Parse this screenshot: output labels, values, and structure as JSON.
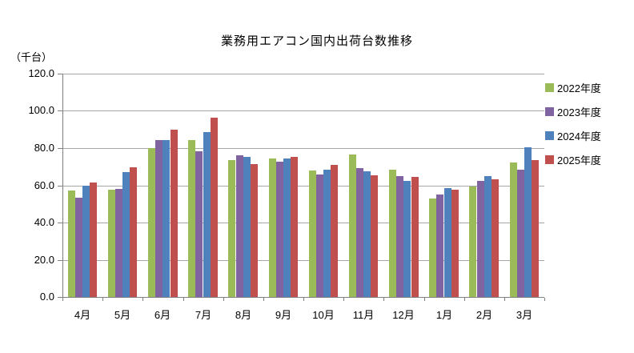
{
  "title": "業務用エアコン国内出荷台数推移",
  "y_axis_unit": "（千台）",
  "chart_data": {
    "type": "bar",
    "title": "業務用エアコン国内出荷台数推移",
    "xlabel": "",
    "ylabel": "（千台）",
    "categories": [
      "4月",
      "5月",
      "6月",
      "7月",
      "8月",
      "9月",
      "10月",
      "11月",
      "12月",
      "1月",
      "2月",
      "3月"
    ],
    "series": [
      {
        "name": "2022年度",
        "color": "#9BBB59",
        "values": [
          57.3,
          57.8,
          79.8,
          84.3,
          73.5,
          74.4,
          68.1,
          76.6,
          68.3,
          53.0,
          59.5,
          72.3
        ]
      },
      {
        "name": "2023年度",
        "color": "#8064A2",
        "values": [
          53.5,
          58.1,
          84.5,
          78.4,
          76.0,
          72.7,
          66.0,
          69.2,
          64.9,
          55.2,
          62.2,
          68.4
        ]
      },
      {
        "name": "2024年度",
        "color": "#4F81BD",
        "values": [
          59.6,
          67.1,
          84.1,
          88.6,
          75.3,
          74.4,
          68.5,
          67.5,
          62.5,
          58.6,
          65.0,
          80.3
        ]
      },
      {
        "name": "2025年度",
        "color": "#C0504D",
        "values": [
          61.4,
          69.8,
          89.8,
          96.5,
          71.4,
          75.3,
          71.0,
          65.4,
          64.5,
          57.7,
          63.4,
          73.5
        ]
      }
    ],
    "ylim": [
      0,
      120
    ],
    "ytick_step": 20,
    "ytick_decimals": 1,
    "grid": true,
    "legend_position": "right"
  },
  "colors": {
    "background": "#FFFFFF",
    "gridline": "#A6A6A6",
    "axis": "#808080",
    "text": "#000000"
  }
}
